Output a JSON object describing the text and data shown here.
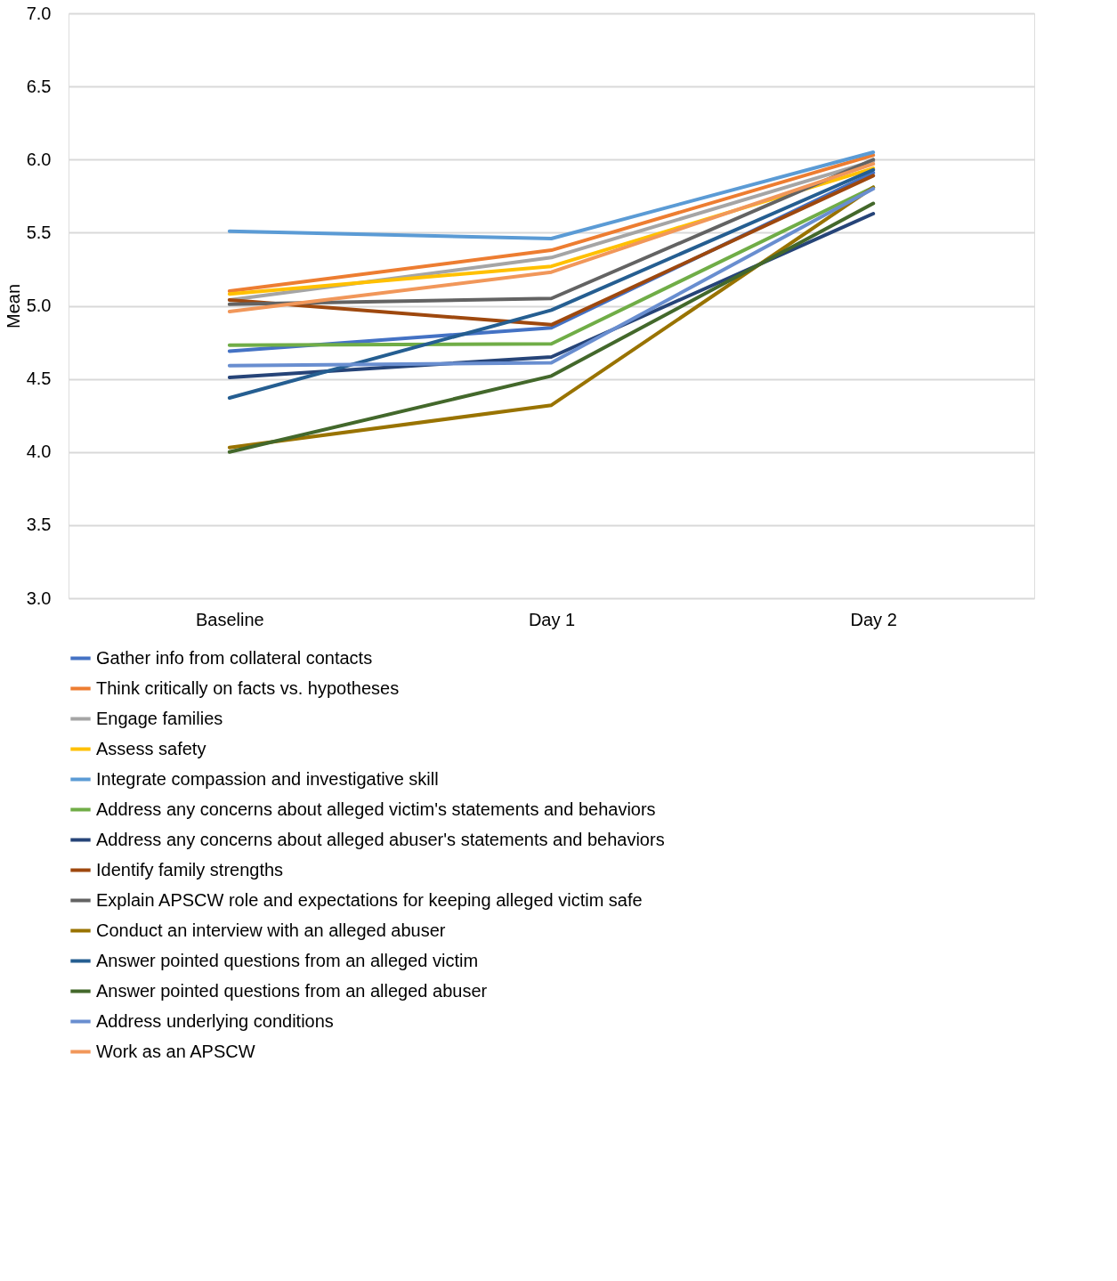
{
  "chart_data": {
    "type": "line",
    "ylabel": "Mean",
    "categories": [
      "Baseline",
      "Day 1",
      "Day 2"
    ],
    "ylim": [
      3.0,
      7.0
    ],
    "yticks": [
      {
        "value": 3,
        "label": "3.0"
      },
      {
        "value": 3.5,
        "label": "3.5"
      },
      {
        "value": 4,
        "label": "4.0"
      },
      {
        "value": 4.5,
        "label": "4.5"
      },
      {
        "value": 5,
        "label": "5.0"
      },
      {
        "value": 5.5,
        "label": "5.5"
      },
      {
        "value": 6,
        "label": "6.0"
      },
      {
        "value": 6.5,
        "label": "6.5"
      },
      {
        "value": 7,
        "label": "7.0"
      }
    ],
    "grid": "y",
    "legend": "bottom",
    "marker": "none",
    "line_style": "solid",
    "series": [
      {
        "name": "Gather info from collateral contacts",
        "color": "#4472c4",
        "values": [
          4.69,
          4.85,
          5.91
        ]
      },
      {
        "name": "Think critically on facts vs. hypotheses",
        "color": "#ed7d31",
        "values": [
          5.1,
          5.38,
          6.03
        ]
      },
      {
        "name": "Engage families",
        "color": "#a5a5a5",
        "values": [
          5.04,
          5.33,
          5.99
        ]
      },
      {
        "name": "Assess safety",
        "color": "#ffc000",
        "values": [
          5.08,
          5.27,
          5.94
        ]
      },
      {
        "name": "Integrate compassion and investigative skill",
        "color": "#5b9bd5",
        "values": [
          5.51,
          5.46,
          6.05
        ]
      },
      {
        "name": "Address any concerns about alleged victim's statements and behaviors",
        "color": "#70ad47",
        "values": [
          4.73,
          4.74,
          5.81
        ]
      },
      {
        "name": "Address any concerns about alleged abuser's statements and behaviors",
        "color": "#264478",
        "values": [
          4.51,
          4.65,
          5.63
        ]
      },
      {
        "name": "Identify family strengths",
        "color": "#9e480e",
        "values": [
          5.04,
          4.87,
          5.89
        ]
      },
      {
        "name": "Explain APSCW role and expectations for keeping alleged victim safe",
        "color": "#636363",
        "values": [
          5.01,
          5.05,
          6.0
        ]
      },
      {
        "name": "Conduct an interview with an alleged abuser",
        "color": "#997300",
        "values": [
          4.03,
          4.32,
          5.81
        ]
      },
      {
        "name": "Answer pointed questions from an alleged victim",
        "color": "#255e91",
        "values": [
          4.37,
          4.97,
          5.93
        ]
      },
      {
        "name": "Answer pointed questions from an alleged abuser",
        "color": "#43682b",
        "values": [
          4.0,
          4.52,
          5.7
        ]
      },
      {
        "name": "Address underlying conditions",
        "color": "#698ed0",
        "values": [
          4.59,
          4.61,
          5.8
        ]
      },
      {
        "name": "Work as an APSCW",
        "color": "#f1975a",
        "values": [
          4.96,
          5.23,
          5.97
        ]
      }
    ]
  }
}
